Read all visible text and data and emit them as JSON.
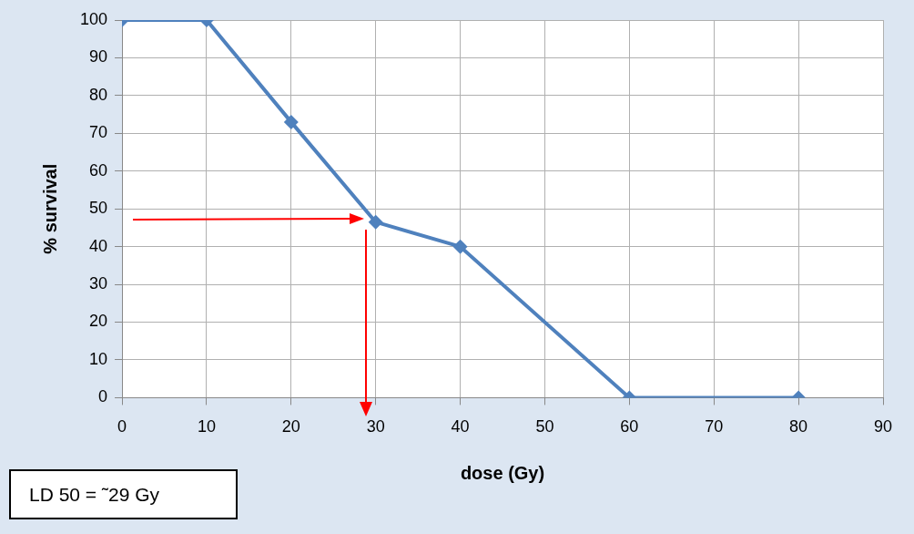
{
  "chart_data": {
    "type": "line",
    "xlabel": "dose (Gy)",
    "ylabel": "% survival",
    "x": [
      0,
      10,
      20,
      30,
      40,
      60,
      80
    ],
    "series": [
      {
        "color": "#4f81bd",
        "values": [
          100,
          100,
          73,
          46.5,
          40,
          0,
          0
        ]
      }
    ],
    "xlim": [
      0,
      90
    ],
    "xticks": [
      0,
      10,
      20,
      30,
      40,
      50,
      60,
      70,
      80,
      90
    ],
    "ylim": [
      0,
      100
    ],
    "yticks": [
      0,
      10,
      20,
      30,
      40,
      50,
      60,
      70,
      80,
      90,
      100
    ],
    "grid": true,
    "marker": "diamond",
    "line_style": "solid",
    "legend": false,
    "annotations": [
      "LD 50 = ˜29 Gy"
    ]
  }
}
